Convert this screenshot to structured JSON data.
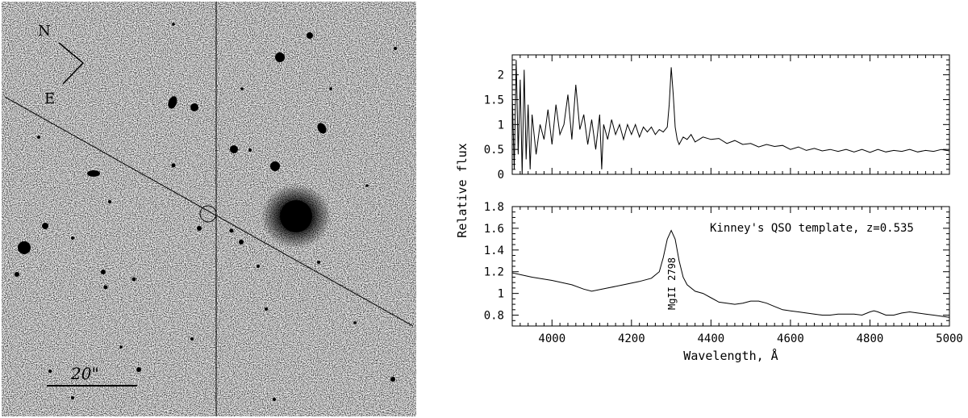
{
  "image_panel": {
    "compass": {
      "north": "N",
      "east": "E"
    },
    "scale_bar_label": "20\""
  },
  "chart_data": [
    {
      "type": "line",
      "panel": "observed spectrum",
      "title": "",
      "xlabel": "",
      "ylabel": "Relative flux",
      "xlim": [
        3900,
        5000
      ],
      "ylim": [
        0,
        2.4
      ],
      "yticks": [
        "0",
        "0.5",
        "1",
        "1.5",
        "2"
      ],
      "grid": false,
      "series": [
        {
          "x": [
            3900,
            3905,
            3910,
            3915,
            3920,
            3925,
            3930,
            3935,
            3940,
            3945,
            3950,
            3960,
            3970,
            3980,
            3990,
            4000,
            4010,
            4020,
            4030,
            4040,
            4050,
            4060,
            4070,
            4080,
            4090,
            4100,
            4110,
            4120,
            4125,
            4130,
            4140,
            4150,
            4160,
            4170,
            4180,
            4190,
            4200,
            4210,
            4220,
            4230,
            4240,
            4250,
            4260,
            4270,
            4280,
            4290,
            4295,
            4300,
            4305,
            4310,
            4315,
            4320,
            4330,
            4340,
            4350,
            4360,
            4380,
            4400,
            4420,
            4440,
            4460,
            4480,
            4500,
            4520,
            4540,
            4560,
            4580,
            4600,
            4620,
            4640,
            4660,
            4680,
            4700,
            4720,
            4740,
            4760,
            4780,
            4800,
            4820,
            4840,
            4860,
            4880,
            4900,
            4920,
            4940,
            4960,
            4980,
            5000
          ],
          "y": [
            1.6,
            0.1,
            2.3,
            0.4,
            1.9,
            0.0,
            2.1,
            0.3,
            1.4,
            0.1,
            1.2,
            0.4,
            1.0,
            0.7,
            1.3,
            0.6,
            1.4,
            0.8,
            1.0,
            1.6,
            0.7,
            1.8,
            0.9,
            1.2,
            0.6,
            1.1,
            0.5,
            1.2,
            0.1,
            1.0,
            0.7,
            1.1,
            0.8,
            1.0,
            0.7,
            1.0,
            0.8,
            1.0,
            0.75,
            0.95,
            0.85,
            0.95,
            0.8,
            0.9,
            0.85,
            0.95,
            1.4,
            2.15,
            1.6,
            0.95,
            0.7,
            0.6,
            0.75,
            0.7,
            0.8,
            0.65,
            0.75,
            0.7,
            0.72,
            0.62,
            0.68,
            0.6,
            0.62,
            0.55,
            0.6,
            0.56,
            0.58,
            0.5,
            0.55,
            0.48,
            0.52,
            0.47,
            0.5,
            0.46,
            0.5,
            0.45,
            0.5,
            0.44,
            0.5,
            0.45,
            0.48,
            0.46,
            0.5,
            0.45,
            0.48,
            0.46,
            0.5,
            0.47
          ]
        }
      ]
    },
    {
      "type": "line",
      "panel": "template spectrum",
      "title": "",
      "xlabel": "Wavelength, Å",
      "ylabel": "",
      "xlim": [
        3900,
        5000
      ],
      "ylim": [
        0.7,
        1.8
      ],
      "xticks": [
        "4000",
        "4200",
        "4400",
        "4600",
        "4800",
        "5000"
      ],
      "yticks": [
        "0.8",
        "1",
        "1.2",
        "1.4",
        "1.6",
        "1.8"
      ],
      "grid": false,
      "annotations": [
        "Kinney's QSO template, z=0.535",
        "MgII 2798"
      ],
      "series": [
        {
          "x": [
            3900,
            3950,
            4000,
            4050,
            4080,
            4100,
            4140,
            4180,
            4220,
            4250,
            4270,
            4280,
            4290,
            4300,
            4310,
            4320,
            4330,
            4340,
            4360,
            4380,
            4400,
            4420,
            4440,
            4460,
            4480,
            4500,
            4520,
            4540,
            4560,
            4580,
            4600,
            4620,
            4640,
            4660,
            4680,
            4700,
            4720,
            4740,
            4760,
            4780,
            4800,
            4810,
            4820,
            4840,
            4860,
            4880,
            4900,
            4920,
            4940,
            4960,
            4980,
            5000
          ],
          "y": [
            1.19,
            1.15,
            1.12,
            1.08,
            1.04,
            1.02,
            1.05,
            1.08,
            1.11,
            1.14,
            1.2,
            1.33,
            1.5,
            1.58,
            1.5,
            1.3,
            1.15,
            1.08,
            1.02,
            1.0,
            0.96,
            0.92,
            0.91,
            0.9,
            0.91,
            0.93,
            0.93,
            0.91,
            0.88,
            0.85,
            0.84,
            0.83,
            0.82,
            0.81,
            0.8,
            0.8,
            0.81,
            0.81,
            0.81,
            0.8,
            0.83,
            0.84,
            0.83,
            0.8,
            0.8,
            0.82,
            0.83,
            0.82,
            0.81,
            0.8,
            0.79,
            0.78
          ]
        }
      ]
    }
  ]
}
